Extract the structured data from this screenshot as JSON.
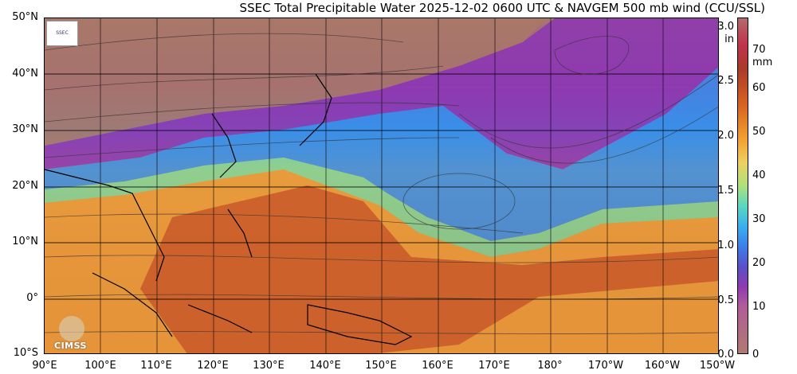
{
  "title": "SSEC Total Precipitable Water  2025-12-02 0600 UTC & NAVGEM 500 mb wind (CCU/SSL)",
  "lat_labels": [
    "50°N",
    "40°N",
    "30°N",
    "20°N",
    "10°N",
    "0°",
    "10°S"
  ],
  "lon_labels": [
    "90°E",
    "100°E",
    "110°E",
    "120°E",
    "130°E",
    "140°E",
    "150°E",
    "160°E",
    "170°E",
    "180°",
    "170°W",
    "160°W",
    "150°W"
  ],
  "colorbar": {
    "inch_labels": [
      "3.0",
      "2.5",
      "2.0",
      "1.5",
      "1.0",
      "0.5",
      "0.0"
    ],
    "inch_unit": "in",
    "mm_labels": [
      "70",
      "60",
      "50",
      "40",
      "30",
      "20",
      "10",
      "0"
    ],
    "mm_unit": "mm"
  },
  "logos": {
    "cimss": "CIMSS"
  },
  "colors": {
    "land_dry": "#a87868",
    "very_moist": "#c04a20",
    "moist": "#f0a030",
    "moderate": "#4ab0f0",
    "dry": "#7a3ab0"
  }
}
